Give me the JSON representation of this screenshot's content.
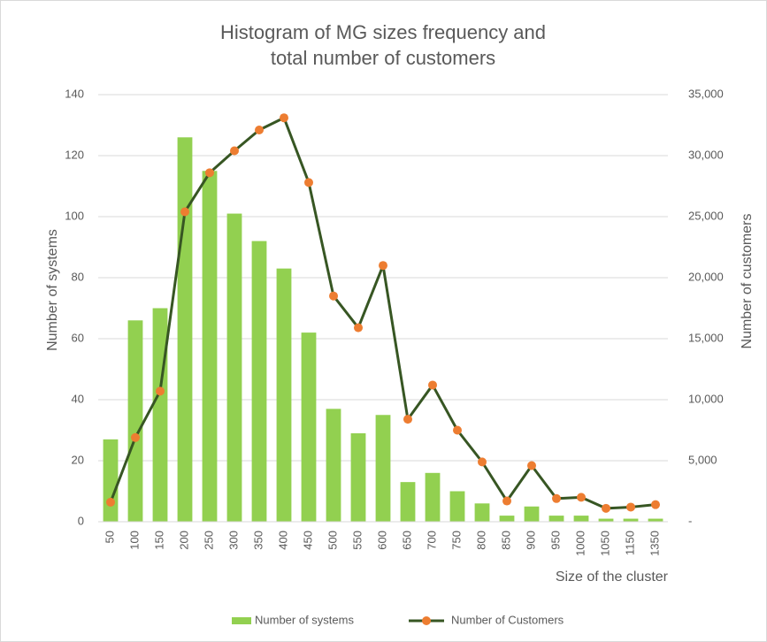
{
  "chart_data": {
    "type": "bar",
    "title": "Histogram of MG sizes frequency and total number of customers",
    "x_label": "Size of the cluster",
    "y_label": "Number of systems",
    "y2_label": "Number of customers",
    "categories": [
      "50",
      "100",
      "150",
      "200",
      "250",
      "300",
      "350",
      "400",
      "450",
      "500",
      "550",
      "600",
      "650",
      "700",
      "750",
      "800",
      "850",
      "900",
      "950",
      "1000",
      "1050",
      "1150",
      "1350"
    ],
    "series": [
      {
        "name": "Number of systems",
        "type": "bar",
        "color": "#92d050",
        "values": [
          27,
          66,
          70,
          126,
          115,
          101,
          92,
          83,
          62,
          37,
          29,
          35,
          13,
          16,
          10,
          6,
          2,
          5,
          2,
          2,
          1,
          1,
          1
        ]
      },
      {
        "name": "Number of Customers",
        "type": "line",
        "axis": "y2",
        "color": "#375623",
        "marker_color": "#ed7d31",
        "values": [
          1600,
          6900,
          10700,
          25400,
          28600,
          30400,
          32100,
          33100,
          27800,
          18500,
          15900,
          21000,
          8400,
          11200,
          7500,
          4900,
          1700,
          4600,
          1900,
          2000,
          1100,
          1200,
          1400
        ]
      }
    ],
    "ylim": [
      0,
      140
    ],
    "yticks": [
      0,
      20,
      40,
      60,
      80,
      100,
      120,
      140
    ],
    "y2lim": [
      0,
      35000
    ],
    "y2ticks": [
      {
        "value": 0,
        "label": "-"
      },
      {
        "value": 5000,
        "label": "5,000"
      },
      {
        "value": 10000,
        "label": "10,000"
      },
      {
        "value": 15000,
        "label": "15,000"
      },
      {
        "value": 20000,
        "label": "20,000"
      },
      {
        "value": 25000,
        "label": "25,000"
      },
      {
        "value": 30000,
        "label": "30,000"
      },
      {
        "value": 35000,
        "label": "35,000"
      }
    ],
    "grid": true,
    "legend": "bottom"
  }
}
